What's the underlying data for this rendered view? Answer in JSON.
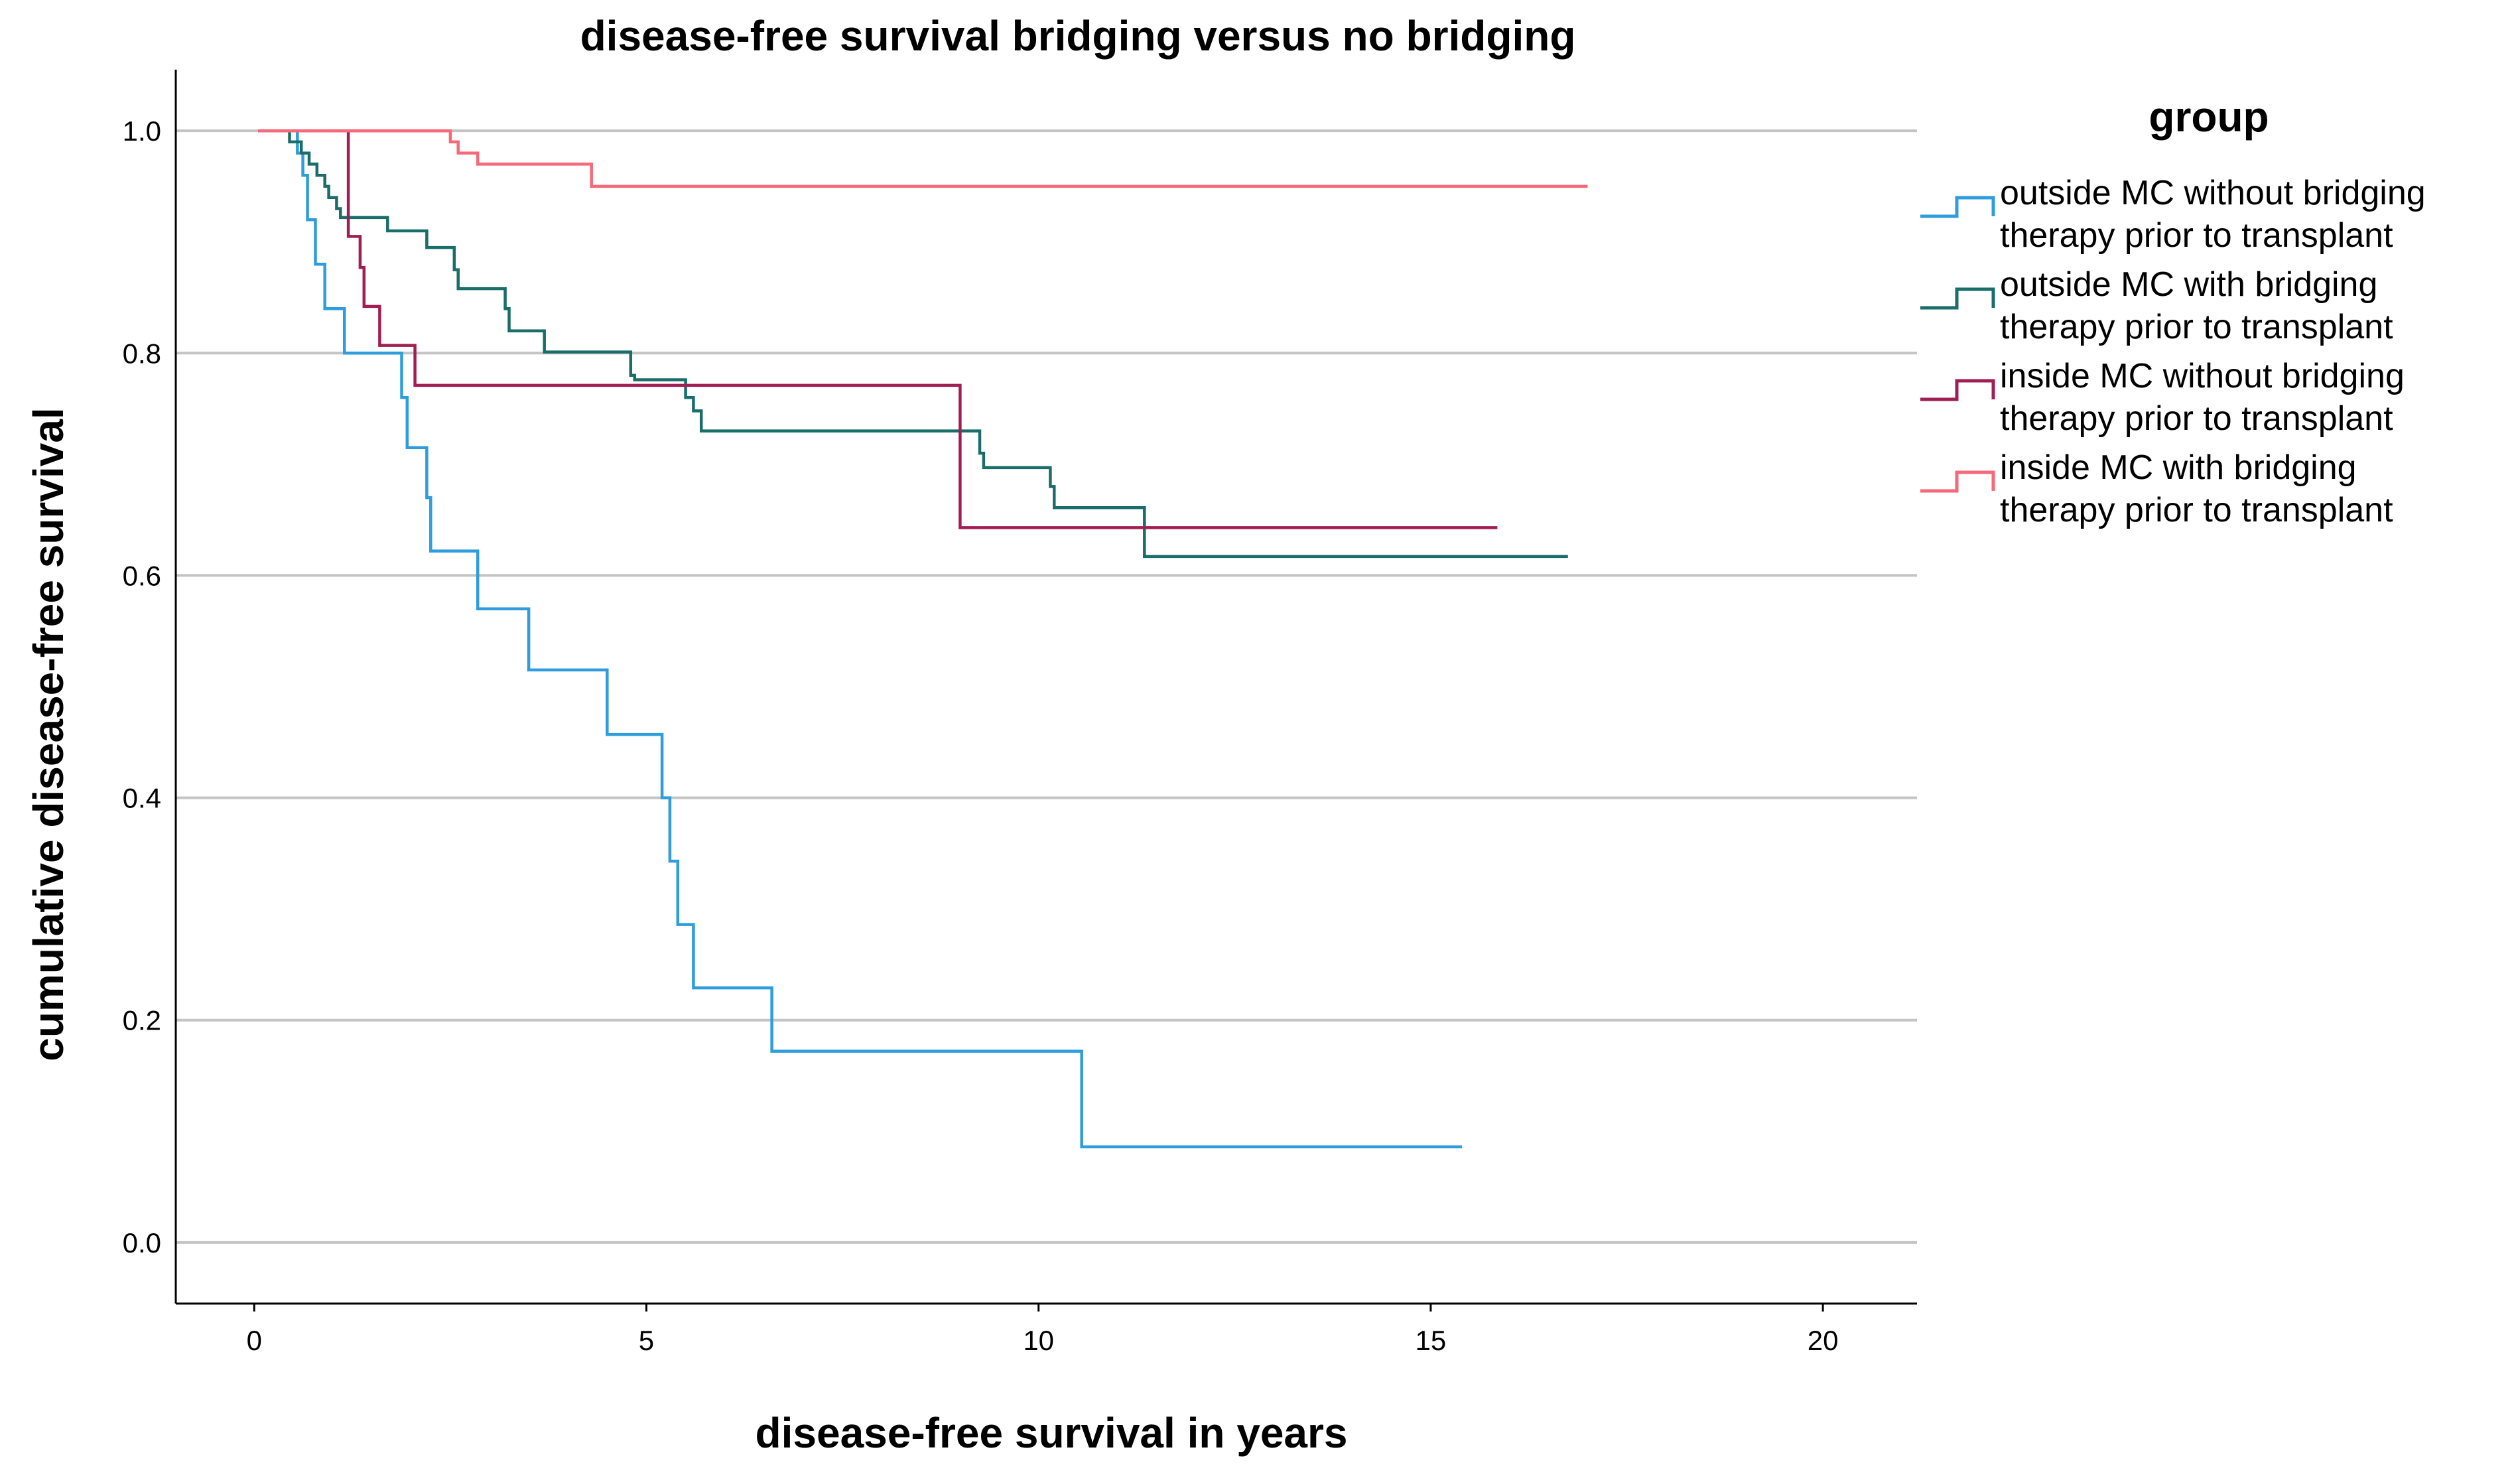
{
  "chart_data": {
    "type": "line",
    "subtype": "kaplan-meier step",
    "title": "disease-free survival bridging versus no bridging",
    "xlabel": "disease-free survival in years",
    "ylabel": "cumulative disease-free survival",
    "xlim": [
      -1,
      21.2
    ],
    "ylim": [
      -0.055,
      1.055
    ],
    "xticks": [
      0,
      5,
      10,
      15,
      20
    ],
    "xtick_labels": [
      "0",
      "5",
      "10",
      "15",
      "20"
    ],
    "yticks": [
      0.0,
      0.2,
      0.4,
      0.6,
      0.8,
      1.0
    ],
    "ytick_labels": [
      "0.0",
      "0.2",
      "0.4",
      "0.6",
      "0.8",
      "1.0"
    ],
    "grid": "horizontal",
    "legend": {
      "title": "group",
      "placement": "right"
    },
    "series": [
      {
        "name": "outside MC without bridging therapy prior to transplant",
        "label_lines": [
          "outside MC without bridging",
          "therapy prior to transplant"
        ],
        "color": "#2f9ddd",
        "points": [
          [
            0.05,
            1.0
          ],
          [
            0.55,
            0.98
          ],
          [
            0.62,
            0.96
          ],
          [
            0.68,
            0.92
          ],
          [
            0.78,
            0.88
          ],
          [
            0.9,
            0.84
          ],
          [
            1.15,
            0.8
          ],
          [
            1.88,
            0.76
          ],
          [
            1.95,
            0.715
          ],
          [
            2.2,
            0.67
          ],
          [
            2.25,
            0.622
          ],
          [
            2.85,
            0.57
          ],
          [
            3.5,
            0.515
          ],
          [
            4.5,
            0.457
          ],
          [
            5.2,
            0.4
          ],
          [
            5.3,
            0.343
          ],
          [
            5.4,
            0.286
          ],
          [
            5.6,
            0.229
          ],
          [
            6.6,
            0.172
          ],
          [
            10.55,
            0.086
          ],
          [
            15.4,
            0.086
          ]
        ]
      },
      {
        "name": "outside MC with bridging therapy prior to transplant",
        "label_lines": [
          "outside MC with bridging",
          "therapy prior to transplant"
        ],
        "color": "#1a6e6a",
        "points": [
          [
            0.05,
            1.0
          ],
          [
            0.45,
            0.99
          ],
          [
            0.6,
            0.98
          ],
          [
            0.7,
            0.97
          ],
          [
            0.8,
            0.96
          ],
          [
            0.9,
            0.95
          ],
          [
            0.95,
            0.94
          ],
          [
            1.05,
            0.93
          ],
          [
            1.1,
            0.922
          ],
          [
            1.7,
            0.91
          ],
          [
            2.2,
            0.895
          ],
          [
            2.55,
            0.875
          ],
          [
            2.6,
            0.858
          ],
          [
            3.2,
            0.84
          ],
          [
            3.25,
            0.82
          ],
          [
            3.7,
            0.801
          ],
          [
            4.8,
            0.78
          ],
          [
            4.85,
            0.776
          ],
          [
            5.5,
            0.76
          ],
          [
            5.6,
            0.748
          ],
          [
            5.7,
            0.73
          ],
          [
            9.25,
            0.71
          ],
          [
            9.3,
            0.697
          ],
          [
            10.15,
            0.68
          ],
          [
            10.2,
            0.661
          ],
          [
            11.35,
            0.617
          ],
          [
            16.75,
            0.617
          ]
        ]
      },
      {
        "name": "inside MC without bridging therapy prior to transplant",
        "label_lines": [
          "inside MC without bridging",
          "therapy prior to transplant"
        ],
        "color": "#a01e54",
        "points": [
          [
            0.05,
            1.0
          ],
          [
            1.2,
            0.905
          ],
          [
            1.35,
            0.877
          ],
          [
            1.4,
            0.842
          ],
          [
            1.6,
            0.807
          ],
          [
            2.05,
            0.771
          ],
          [
            9.0,
            0.643
          ],
          [
            15.85,
            0.643
          ]
        ]
      },
      {
        "name": "inside MC with bridging therapy prior to transplant",
        "label_lines": [
          "inside MC with bridging",
          "therapy prior to transplant"
        ],
        "color": "#f46a78",
        "points": [
          [
            0.05,
            1.0
          ],
          [
            2.5,
            0.99
          ],
          [
            2.6,
            0.98
          ],
          [
            2.85,
            0.97
          ],
          [
            4.3,
            0.95
          ],
          [
            17.0,
            0.95
          ]
        ]
      }
    ]
  }
}
